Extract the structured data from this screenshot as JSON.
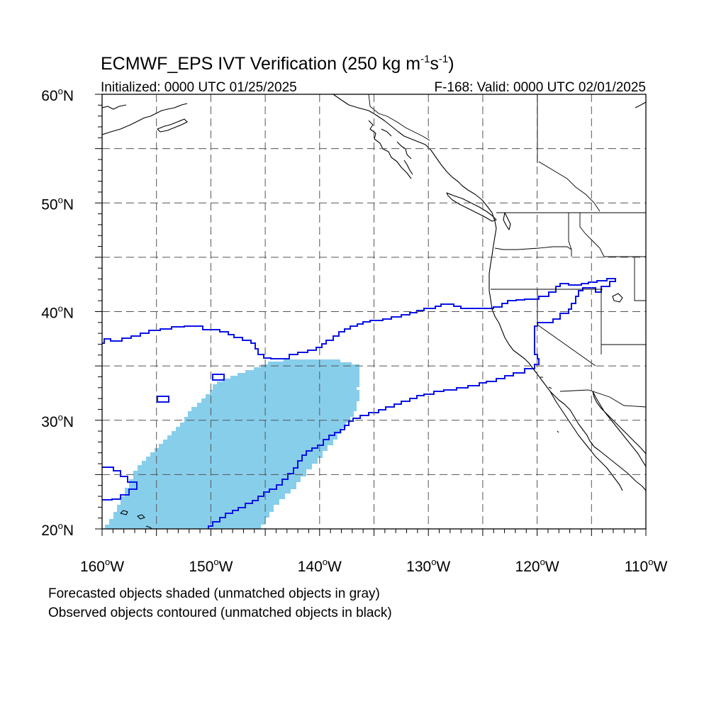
{
  "title": {
    "main": "ECMWF_EPS IVT Verification (250 kg m",
    "exp1": "-1",
    "mid": "s",
    "exp2": "-1",
    "close": ")"
  },
  "subtitle_left": "Initialized: 0000 UTC 01/25/2025",
  "subtitle_right": "F-168: Valid: 0000 UTC 02/01/2025",
  "axes": {
    "lon_range": [
      -160,
      -110
    ],
    "lat_range": [
      20,
      60
    ],
    "lat_ticks": [
      {
        "value": 60,
        "label": "60"
      },
      {
        "value": 50,
        "label": "50"
      },
      {
        "value": 40,
        "label": "40"
      },
      {
        "value": 30,
        "label": "30"
      },
      {
        "value": 20,
        "label": "20"
      }
    ],
    "lat_suffix": "N",
    "lon_ticks": [
      {
        "value": -160,
        "label": "160"
      },
      {
        "value": -150,
        "label": "150"
      },
      {
        "value": -140,
        "label": "140"
      },
      {
        "value": -130,
        "label": "130"
      },
      {
        "value": -120,
        "label": "120"
      },
      {
        "value": -110,
        "label": "110"
      }
    ],
    "lon_suffix": "W",
    "degree_symbol": "o",
    "grid_spacing_deg": 5,
    "grid": true
  },
  "legend_lines": [
    "Forecasted objects shaded (unmatched objects in gray)",
    "Observed objects contoured (unmatched objects in black)"
  ],
  "colors": {
    "forecast_fill": "#87ceeb",
    "observed_contour": "#0a14e6",
    "coast": "#000000",
    "grid": "#555555"
  }
}
